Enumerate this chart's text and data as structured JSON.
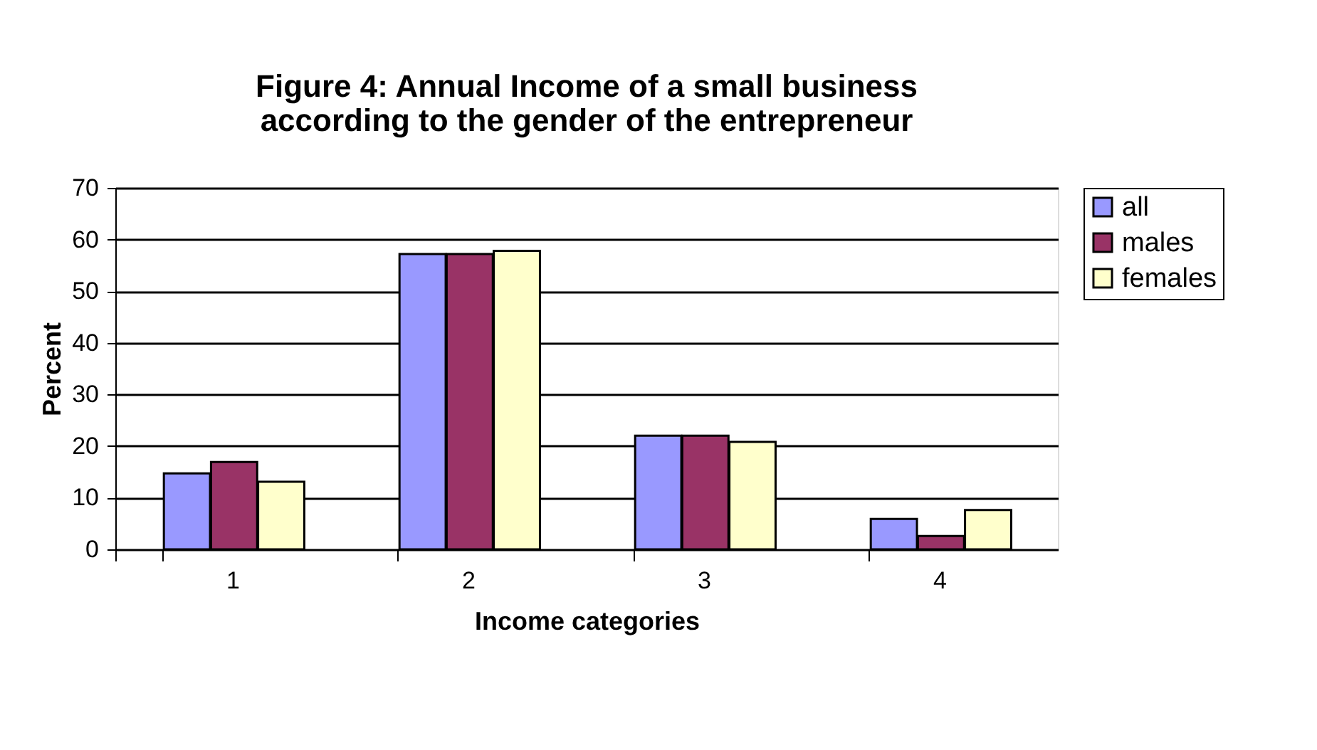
{
  "chart_data": {
    "type": "bar",
    "title": [
      "Figure 4: Annual Income of a small business",
      "according to the gender of the entrepreneur"
    ],
    "xlabel": "Income categories",
    "ylabel": "Percent",
    "categories": [
      "1",
      "2",
      "3",
      "4"
    ],
    "series": [
      {
        "name": "all",
        "color": "#9999ff",
        "values": [
          14.7,
          57.2,
          22.0,
          5.9
        ]
      },
      {
        "name": "males",
        "color": "#993366",
        "values": [
          16.9,
          57.2,
          22.0,
          2.6
        ]
      },
      {
        "name": "females",
        "color": "#ffffcc",
        "values": [
          13.1,
          57.8,
          20.8,
          7.6
        ]
      }
    ],
    "ylim": [
      0,
      70
    ],
    "yticks": [
      0,
      10,
      20,
      30,
      40,
      50,
      60,
      70
    ],
    "grid": "y",
    "legend": "right"
  }
}
